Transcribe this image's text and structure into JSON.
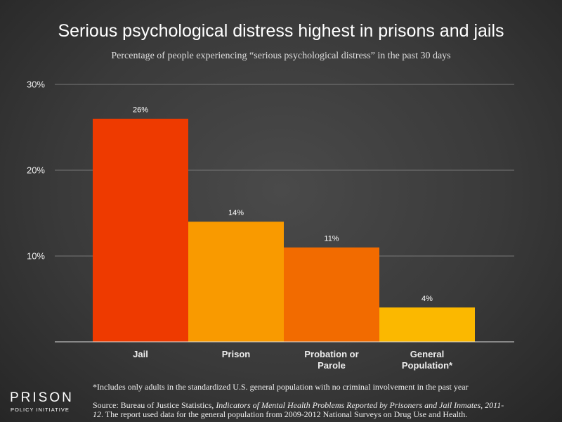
{
  "chart_data": {
    "type": "bar",
    "title": "Serious psychological distress highest in prisons and jails",
    "subtitle": "Percentage of people experiencing “serious psychological distress” in the past 30 days",
    "categories": [
      "Jail",
      "Prison",
      "Probation or Parole",
      "General Population*"
    ],
    "values": [
      26,
      14,
      11,
      4
    ],
    "value_labels": [
      "26%",
      "14%",
      "11%",
      "4%"
    ],
    "colors": [
      "#ee3a00",
      "#f99a00",
      "#f26b00",
      "#fbb800"
    ],
    "ylim": [
      0,
      30
    ],
    "yticks": [
      {
        "value": 10,
        "label": "10%"
      },
      {
        "value": 20,
        "label": "20%"
      },
      {
        "value": 30,
        "label": "30%"
      }
    ],
    "grid": true,
    "footnote": "*Includes only adults in the standardized U.S. general population with no criminal involvement in the past year",
    "source_prefix": "Source: Bureau of Justice Statistics, ",
    "source_title": "Indicators of Mental Health Problems Reported by Prisoners and Jail Inmates, 2011-12",
    "source_suffix": ". The report used data for the general population from 2009-2012 National Surveys on Drug Use and Health.",
    "logo_top": "PRISON",
    "logo_bottom": "POLICY INITIATIVE"
  }
}
